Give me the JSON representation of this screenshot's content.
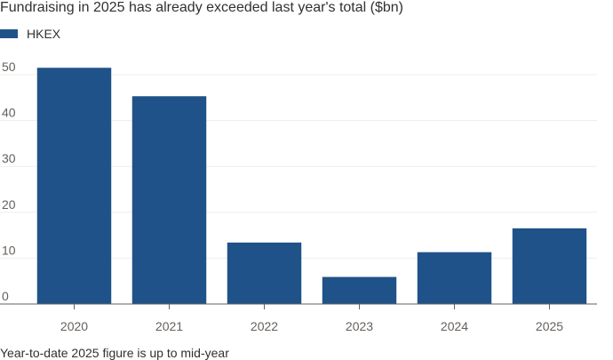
{
  "title": "Fundraising in 2025 has already exceeded last year's total ($bn)",
  "note": "Year-to-date 2025 figure is up to mid-year",
  "colors": {
    "bar": "#1f5289",
    "grid": "#eeeeee",
    "axis": "#66605c",
    "text": "#33302e"
  },
  "chart_data": {
    "type": "bar",
    "title": "Fundraising in 2025 has already exceeded last year's total ($bn)",
    "categories": [
      "2020",
      "2021",
      "2022",
      "2023",
      "2024",
      "2025"
    ],
    "series": [
      {
        "name": "HKEX",
        "values": [
          51.5,
          45.3,
          13.4,
          5.9,
          11.3,
          16.5
        ]
      }
    ],
    "ylim": [
      0,
      50
    ],
    "yticks": [
      0,
      10,
      20,
      30,
      40,
      50
    ],
    "legend": "top-left",
    "grid": true
  }
}
